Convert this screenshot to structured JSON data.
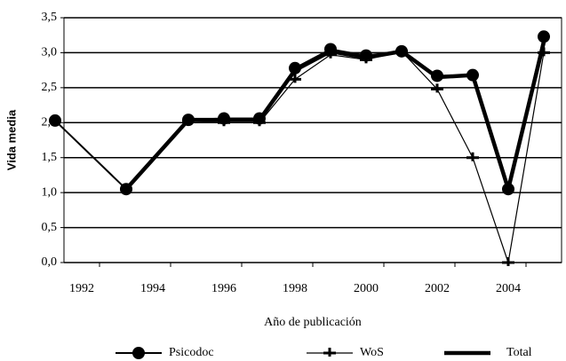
{
  "chart_data": {
    "type": "line",
    "x_label": "Año de publicación",
    "y_label": "Vida media",
    "x": [
      1991.25,
      1993.25,
      1995,
      1996,
      1997,
      1998,
      1999,
      2000,
      2001,
      2002,
      2003,
      2004,
      2005
    ],
    "series": [
      {
        "name": "Psicodoc",
        "color": "#000000",
        "marker": "circle",
        "values": [
          2.03,
          1.05,
          2.04,
          2.06,
          2.06,
          2.78,
          3.05,
          2.96,
          3.02,
          2.67,
          2.68,
          1.05,
          3.23
        ]
      },
      {
        "name": "WoS",
        "color": "#000000",
        "marker": "plus",
        "values": [
          null,
          1.05,
          2.03,
          2.0,
          2.0,
          2.62,
          2.97,
          2.9,
          3.02,
          2.48,
          1.5,
          0.0,
          3.0
        ]
      },
      {
        "name": "Total",
        "color": "#000000",
        "marker": "none",
        "values": [
          null,
          1.05,
          2.04,
          2.04,
          2.04,
          2.75,
          3.02,
          2.93,
          3.02,
          2.65,
          2.68,
          1.05,
          3.15
        ]
      }
    ],
    "xlim": [
      1991.5,
      2005.5
    ],
    "xticks": [
      1992,
      1994,
      1996,
      1998,
      2000,
      2002,
      2004
    ],
    "ylim": [
      0,
      3.5
    ],
    "yticks": [
      {
        "value": 0,
        "label": "0,0"
      },
      {
        "value": 0.5,
        "label": "0,5"
      },
      {
        "value": 1,
        "label": "1,0"
      },
      {
        "value": 1.5,
        "label": "1,5"
      },
      {
        "value": 2,
        "label": "2,0"
      },
      {
        "value": 2.5,
        "label": "2,5"
      },
      {
        "value": 3,
        "label": "3,0"
      },
      {
        "value": 3.5,
        "label": "3,5"
      }
    ],
    "grid": true,
    "legend": "bottom"
  }
}
